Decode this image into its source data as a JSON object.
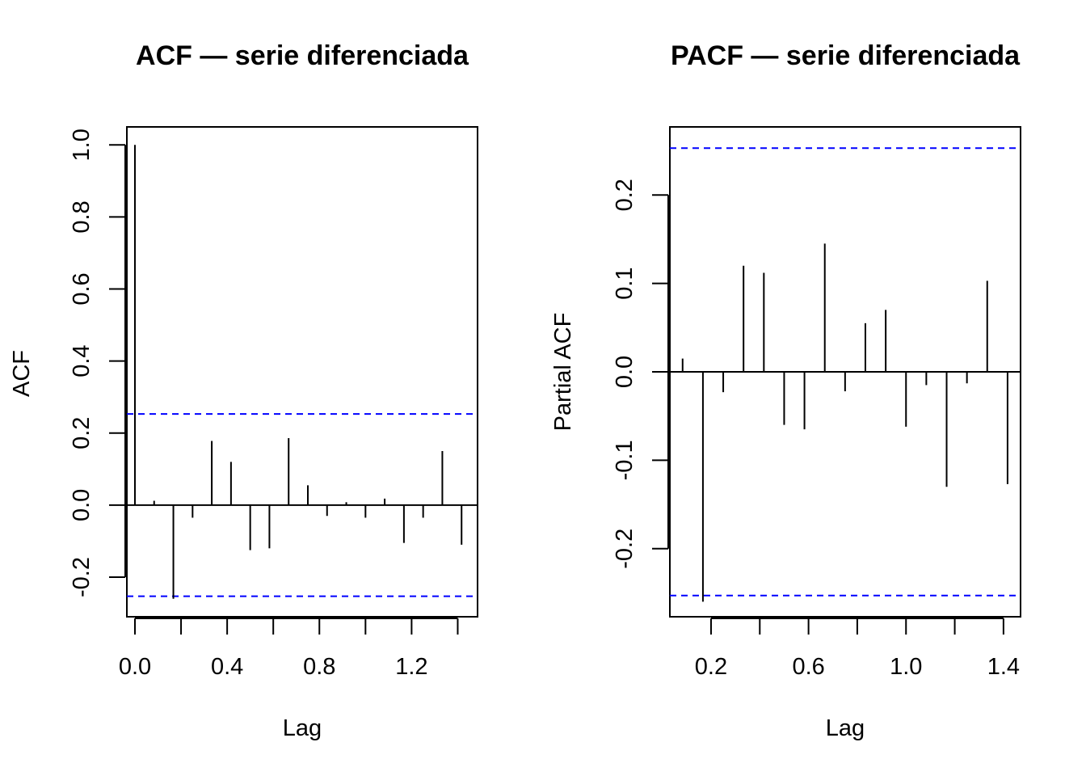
{
  "chart_data": [
    {
      "type": "bar",
      "title": "ACF — serie diferenciada",
      "xlabel": "Lag",
      "ylabel": "ACF",
      "xlim": [
        -0.035,
        1.486
      ],
      "ylim": [
        -0.31,
        1.05
      ],
      "xticks": [
        0.0,
        0.2,
        0.4,
        0.6,
        0.8,
        1.0,
        1.2,
        1.4
      ],
      "xtick_labels": [
        "0.0",
        "",
        "0.4",
        "",
        "0.8",
        "",
        "1.2",
        ""
      ],
      "yticks": [
        -0.2,
        0.0,
        0.2,
        0.4,
        0.6,
        0.8,
        1.0
      ],
      "ytick_labels": [
        "-0.2",
        "0.0",
        "0.2",
        "0.4",
        "0.6",
        "0.8",
        "1.0"
      ],
      "ci": 0.253,
      "grid": false,
      "x": [
        0.0,
        0.0833,
        0.1667,
        0.25,
        0.3333,
        0.4167,
        0.5,
        0.5833,
        0.6667,
        0.75,
        0.8333,
        0.9167,
        1.0,
        1.0833,
        1.1667,
        1.25,
        1.3333,
        1.4167
      ],
      "values": [
        1.0,
        0.012,
        -0.26,
        -0.035,
        0.178,
        0.12,
        -0.125,
        -0.12,
        0.186,
        0.055,
        -0.03,
        0.008,
        -0.035,
        0.018,
        -0.105,
        -0.035,
        0.15,
        -0.11
      ]
    },
    {
      "type": "bar",
      "title": "PACF — serie diferenciada",
      "xlabel": "Lag",
      "ylabel": "Partial ACF",
      "xlim": [
        0.031,
        1.47
      ],
      "ylim": [
        -0.277,
        0.277
      ],
      "xticks": [
        0.2,
        0.4,
        0.6,
        0.8,
        1.0,
        1.2,
        1.4
      ],
      "xtick_labels": [
        "0.2",
        "",
        "0.6",
        "",
        "1.0",
        "",
        "1.4"
      ],
      "yticks": [
        -0.2,
        -0.1,
        0.0,
        0.1,
        0.2
      ],
      "ytick_labels": [
        "-0.2",
        "-0.1",
        "0.0",
        "0.1",
        "0.2"
      ],
      "ci": 0.253,
      "grid": false,
      "x": [
        0.0833,
        0.1667,
        0.25,
        0.3333,
        0.4167,
        0.5,
        0.5833,
        0.6667,
        0.75,
        0.8333,
        0.9167,
        1.0,
        1.0833,
        1.1667,
        1.25,
        1.3333,
        1.4167
      ],
      "values": [
        0.015,
        -0.26,
        -0.023,
        0.12,
        0.112,
        -0.06,
        -0.065,
        0.145,
        -0.022,
        0.055,
        0.07,
        -0.062,
        -0.015,
        -0.13,
        -0.013,
        0.103,
        -0.127
      ]
    }
  ]
}
